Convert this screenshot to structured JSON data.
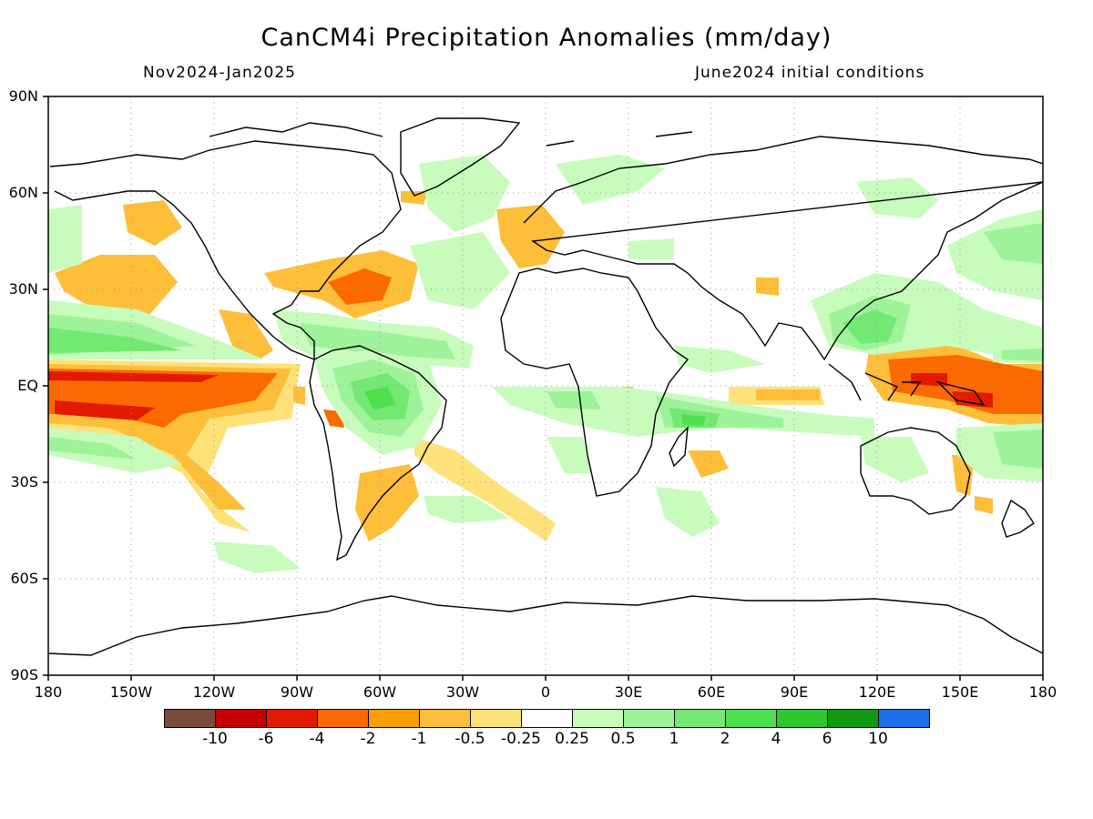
{
  "title": "CanCM4i Precipitation Anomalies (mm/day)",
  "period": "Nov2024-Jan2025",
  "init": "June2024 initial conditions",
  "lat_ticks": [
    "90N",
    "60N",
    "30N",
    "EQ",
    "30S",
    "60S",
    "90S"
  ],
  "lon_ticks": [
    "180",
    "150W",
    "120W",
    "90W",
    "60W",
    "30W",
    "0",
    "30E",
    "60E",
    "90E",
    "120E",
    "150E",
    "180"
  ],
  "colorbar": {
    "colors": [
      "#7a4b3c",
      "#c40000",
      "#e21a00",
      "#fb6a00",
      "#fc9e00",
      "#fdbe3a",
      "#fde27a",
      "#ffffff",
      "#c7fcbc",
      "#9df29a",
      "#73e873",
      "#4ee04e",
      "#2fc62f",
      "#119a11",
      "#1e6ee8"
    ],
    "labels": [
      "-10",
      "-6",
      "-4",
      "-2",
      "-1",
      "-0.5",
      "-0.25",
      "0.25",
      "0.5",
      "1",
      "2",
      "4",
      "6",
      "10"
    ]
  },
  "anomaly_palette": {
    "strong_dry": "#e21a00",
    "dry": "#fb6a00",
    "moderate_dry": "#fc9e00",
    "weak_dry": "#fdbe3a",
    "slight_dry": "#fde27a",
    "slight_wet": "#c7fcbc",
    "weak_wet": "#9df29a",
    "wet": "#73e873",
    "moderate_wet": "#4ee04e",
    "strong_wet": "#2fc62f"
  }
}
